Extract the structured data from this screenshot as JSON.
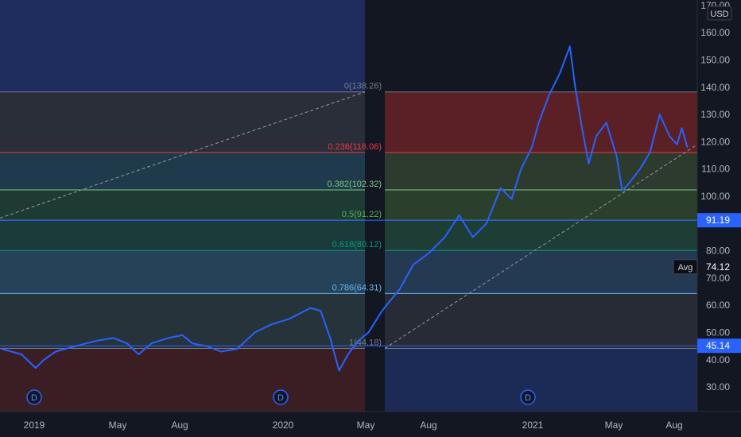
{
  "chart_data": {
    "type": "line",
    "currency": "USD",
    "x_ticks": [
      "2019",
      "May",
      "Aug",
      "2020",
      "May",
      "Aug",
      "2021",
      "May",
      "Aug"
    ],
    "y_ticks": [
      "30.00",
      "40.00",
      "50.00",
      "60.00",
      "70.00",
      "80.00",
      "90.00",
      "100.00",
      "110.00",
      "120.00",
      "130.00",
      "140.00",
      "150.00",
      "160.00",
      "170.00"
    ],
    "ylim": [
      21,
      172
    ],
    "series": [
      {
        "color": "#2962ff",
        "points": [
          [
            "2018-12-01",
            44
          ],
          [
            "2018-12-20",
            42
          ],
          [
            "2019-01-03",
            37
          ],
          [
            "2019-01-15",
            40
          ],
          [
            "2019-02-01",
            43
          ],
          [
            "2019-03-01",
            45
          ],
          [
            "2019-04-01",
            47
          ],
          [
            "2019-04-25",
            48
          ],
          [
            "2019-05-15",
            46
          ],
          [
            "2019-06-01",
            42
          ],
          [
            "2019-06-20",
            46
          ],
          [
            "2019-07-15",
            48
          ],
          [
            "2019-08-05",
            49
          ],
          [
            "2019-08-20",
            46
          ],
          [
            "2019-09-10",
            45
          ],
          [
            "2019-10-01",
            43
          ],
          [
            "2019-10-25",
            44
          ],
          [
            "2019-11-20",
            50
          ],
          [
            "2019-12-15",
            53
          ],
          [
            "2020-01-10",
            55
          ],
          [
            "2020-02-10",
            59
          ],
          [
            "2020-02-25",
            58
          ],
          [
            "2020-03-10",
            48
          ],
          [
            "2020-03-23",
            36
          ],
          [
            "2020-04-05",
            42
          ],
          [
            "2020-04-20",
            47
          ],
          [
            "2020-05-05",
            50
          ],
          [
            "2020-05-25",
            58
          ],
          [
            "2020-06-20",
            66
          ],
          [
            "2020-07-10",
            75
          ],
          [
            "2020-08-01",
            79
          ],
          [
            "2020-08-25",
            85
          ],
          [
            "2020-09-15",
            93
          ],
          [
            "2020-10-05",
            85
          ],
          [
            "2020-10-25",
            90
          ],
          [
            "2020-11-15",
            103
          ],
          [
            "2020-12-01",
            99
          ],
          [
            "2020-12-15",
            110
          ],
          [
            "2020-12-31",
            118
          ],
          [
            "2021-01-10",
            127
          ],
          [
            "2021-01-25",
            137
          ],
          [
            "2021-02-10",
            145
          ],
          [
            "2021-02-25",
            155
          ],
          [
            "2021-03-05",
            140
          ],
          [
            "2021-03-15",
            125
          ],
          [
            "2021-03-25",
            112
          ],
          [
            "2021-04-05",
            122
          ],
          [
            "2021-04-20",
            127
          ],
          [
            "2021-05-05",
            115
          ],
          [
            "2021-05-14",
            102
          ],
          [
            "2021-05-25",
            105
          ],
          [
            "2021-06-10",
            110
          ],
          [
            "2021-06-25",
            116
          ],
          [
            "2021-07-10",
            130
          ],
          [
            "2021-07-25",
            122
          ],
          [
            "2021-08-05",
            119
          ],
          [
            "2021-08-12",
            125
          ],
          [
            "2021-08-20",
            118
          ]
        ]
      }
    ],
    "fibonacci": [
      {
        "label": "0(138.26)",
        "value": 138.26,
        "color": "#787b86"
      },
      {
        "label": "0.236(116.06)",
        "value": 116.06,
        "color": "#f23645"
      },
      {
        "label": "0.382(102.32)",
        "value": 102.32,
        "color": "#81c784"
      },
      {
        "label": "0.5(91.22)",
        "value": 91.22,
        "color": "#4caf50"
      },
      {
        "label": "0.618(80.12)",
        "value": 80.12,
        "color": "#089981"
      },
      {
        "label": "0.786(64.31)",
        "value": 64.31,
        "color": "#64b5f6"
      },
      {
        "label": "1(44.18)",
        "value": 44.18,
        "color": "#787b86"
      }
    ],
    "price_labels": [
      {
        "label": "91.19",
        "value": 91.19,
        "color": "#2962ff"
      },
      {
        "label": "45.14",
        "value": 45.14,
        "color": "#2962ff"
      }
    ],
    "avg_label": {
      "label": "Avg",
      "value": 74.12,
      "text": "74.12"
    },
    "dividend_marker": "D"
  }
}
